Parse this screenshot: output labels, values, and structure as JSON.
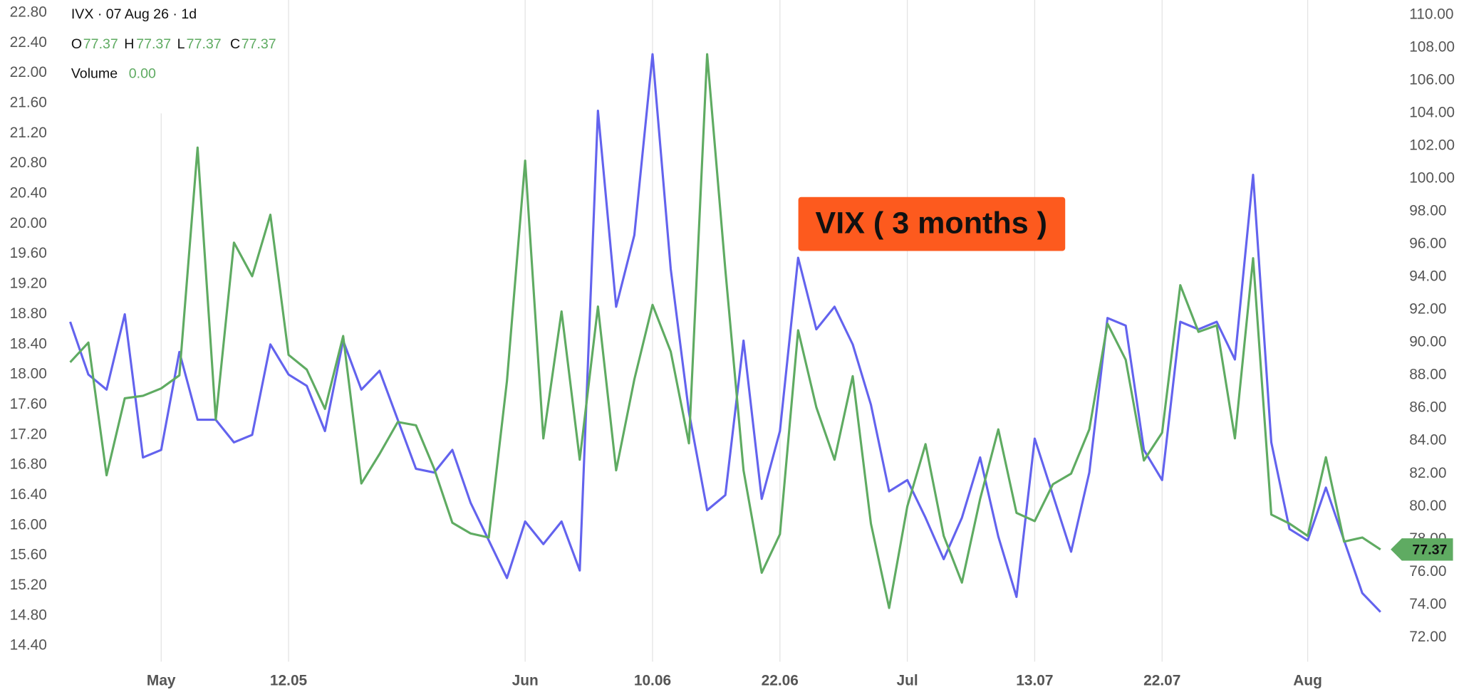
{
  "chart_data": {
    "type": "line",
    "header": {
      "symbol_line": "IVX · 07 Aug 26 · 1d",
      "ohlc": [
        {
          "label": "O",
          "value": "77.37"
        },
        {
          "label": "H",
          "value": "77.37"
        },
        {
          "label": "L",
          "value": "77.37"
        },
        {
          "label": "C",
          "value": "77.37"
        }
      ],
      "volume_label": "Volume",
      "volume": "0.00"
    },
    "annotation": "VIX ( 3 months )",
    "categories": [
      null,
      null,
      null,
      null,
      null,
      "May",
      null,
      null,
      null,
      null,
      null,
      null,
      "12.05",
      null,
      null,
      null,
      null,
      null,
      null,
      null,
      null,
      null,
      null,
      null,
      null,
      "Jun",
      null,
      null,
      null,
      null,
      null,
      null,
      "10.06",
      null,
      null,
      null,
      null,
      null,
      null,
      "22.06",
      null,
      null,
      null,
      null,
      null,
      null,
      "Jul",
      null,
      null,
      null,
      null,
      null,
      null,
      "13.07",
      null,
      null,
      null,
      null,
      null,
      null,
      "22.07",
      null,
      null,
      null,
      null,
      null,
      null,
      null,
      "Aug",
      null,
      null,
      null,
      null
    ],
    "series": [
      {
        "color": "#6363ee",
        "axis": "y",
        "values": [
          18.7,
          18.0,
          17.8,
          18.8,
          16.9,
          17.0,
          18.3,
          17.4,
          17.4,
          17.1,
          17.2,
          18.4,
          18.0,
          17.85,
          17.25,
          18.45,
          17.8,
          18.05,
          17.4,
          16.75,
          16.7,
          17.0,
          16.3,
          15.8,
          15.3,
          16.05,
          15.75,
          16.05,
          15.4,
          21.5,
          18.9,
          19.85,
          22.25,
          19.4,
          17.5,
          16.2,
          16.4,
          18.45,
          16.35,
          17.25,
          19.55,
          18.6,
          18.9,
          18.4,
          17.6,
          16.45,
          16.6,
          16.1,
          15.55,
          16.1,
          16.9,
          15.85,
          15.05,
          17.15,
          16.4,
          15.65,
          16.7,
          18.75,
          18.65,
          17.0,
          16.6,
          18.7,
          18.6,
          18.7,
          18.2,
          20.65,
          17.1,
          15.95,
          15.8,
          16.5,
          15.8,
          15.1,
          14.85
        ]
      },
      {
        "color": "#5fab62",
        "axis": "y2",
        "values": [
          88.8,
          90.0,
          81.9,
          86.6,
          86.75,
          87.2,
          88.0,
          101.9,
          85.3,
          96.1,
          94.05,
          97.8,
          89.25,
          88.35,
          85.95,
          90.4,
          81.4,
          83.2,
          85.15,
          84.95,
          82.3,
          79.0,
          78.35,
          78.1,
          87.65,
          101.1,
          84.15,
          91.9,
          82.85,
          92.2,
          82.2,
          87.75,
          92.3,
          89.45,
          83.85,
          107.6,
          94.45,
          82.2,
          75.95,
          78.3,
          90.75,
          86.05,
          82.85,
          87.95,
          78.95,
          73.8,
          80.0,
          83.8,
          78.2,
          75.35,
          80.45,
          84.7,
          79.6,
          79.1,
          81.35,
          82.0,
          84.7,
          91.15,
          88.95,
          82.8,
          84.5,
          93.5,
          90.65,
          91.05,
          84.15,
          95.15,
          79.5,
          78.95,
          78.2,
          83.0,
          77.85,
          78.1,
          77.37
        ]
      }
    ],
    "ylim": [
      14.19,
      22.97
    ],
    "yticks": [
      {
        "value": 22.8,
        "label": "22.80"
      },
      {
        "value": 22.4,
        "label": "22.40"
      },
      {
        "value": 22,
        "label": "22.00"
      },
      {
        "value": 21.6,
        "label": "21.60"
      },
      {
        "value": 21.2,
        "label": "21.20"
      },
      {
        "value": 20.8,
        "label": "20.80"
      },
      {
        "value": 20.4,
        "label": "20.40"
      },
      {
        "value": 20,
        "label": "20.00"
      },
      {
        "value": 19.6,
        "label": "19.60"
      },
      {
        "value": 19.2,
        "label": "19.20"
      },
      {
        "value": 18.8,
        "label": "18.80"
      },
      {
        "value": 18.4,
        "label": "18.40"
      },
      {
        "value": 18,
        "label": "18.00"
      },
      {
        "value": 17.6,
        "label": "17.60"
      },
      {
        "value": 17.2,
        "label": "17.20"
      },
      {
        "value": 16.8,
        "label": "16.80"
      },
      {
        "value": 16.4,
        "label": "16.40"
      },
      {
        "value": 16,
        "label": "16.00"
      },
      {
        "value": 15.6,
        "label": "15.60"
      },
      {
        "value": 15.2,
        "label": "15.20"
      },
      {
        "value": 14.8,
        "label": "14.80"
      },
      {
        "value": 14.4,
        "label": "14.40"
      }
    ],
    "y2lim": [
      70.52,
      110.91
    ],
    "y2ticks": [
      {
        "value": 110,
        "label": "110.00"
      },
      {
        "value": 108,
        "label": "108.00"
      },
      {
        "value": 106,
        "label": "106.00"
      },
      {
        "value": 104,
        "label": "104.00"
      },
      {
        "value": 102,
        "label": "102.00"
      },
      {
        "value": 100,
        "label": "100.00"
      },
      {
        "value": 98,
        "label": "98.00"
      },
      {
        "value": 96,
        "label": "96.00"
      },
      {
        "value": 94,
        "label": "94.00"
      },
      {
        "value": 92,
        "label": "92.00"
      },
      {
        "value": 90,
        "label": "90.00"
      },
      {
        "value": 88,
        "label": "88.00"
      },
      {
        "value": 86,
        "label": "86.00"
      },
      {
        "value": 84,
        "label": "84.00"
      },
      {
        "value": 82,
        "label": "82.00"
      },
      {
        "value": 80,
        "label": "80.00"
      },
      {
        "value": 78,
        "label": "78.00"
      },
      {
        "value": 76,
        "label": "76.00"
      },
      {
        "value": 74,
        "label": "74.00"
      },
      {
        "value": 72,
        "label": "72.00"
      }
    ],
    "x_grid": true,
    "y_grid": false,
    "annotation_color": "#fd5a1e"
  }
}
